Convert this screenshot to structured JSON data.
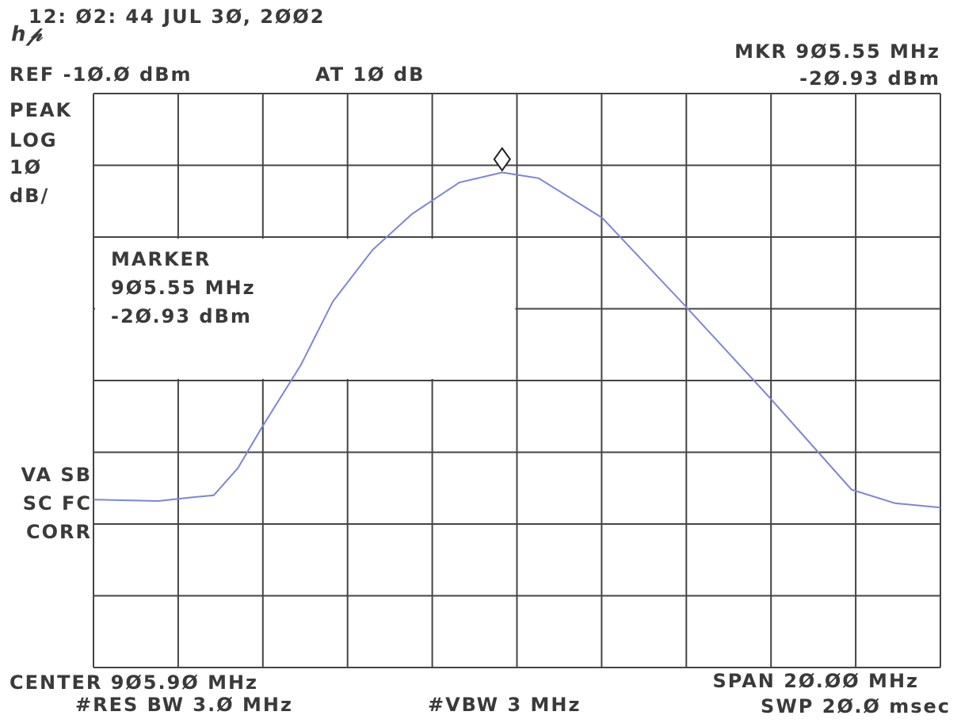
{
  "chart_data": {
    "type": "line",
    "header": {
      "timestamp": "12: Ø2: 44 JUL 3Ø, 2ØØ2",
      "ref": "REF -1Ø.Ø dBm",
      "atten": "AT 1Ø dB",
      "mkr_freq": "MKR 9Ø5.55 MHz",
      "mkr_level": "-2Ø.93 dBm"
    },
    "left_labels": [
      "PEAK",
      "LOG",
      "1Ø",
      "dB/"
    ],
    "status_labels": [
      "VA SB",
      "SC FC",
      "CORR"
    ],
    "marker_box": [
      "MARKER",
      "9Ø5.55 MHz",
      "-2Ø.93 dBm"
    ],
    "footer": {
      "center": "CENTER 9Ø5.9Ø MHz",
      "res_bw": "#RES BW 3.Ø MHz",
      "vbw": "#VBW 3 MHz",
      "span": "SPAN 2Ø.ØØ MHz",
      "sweep": "SWP 2Ø.Ø msec"
    },
    "xlim": [
      895.9,
      915.9
    ],
    "ylim": [
      -90,
      -10
    ],
    "grid": true,
    "marker": {
      "x": 905.55,
      "y": -20.93
    },
    "series": [
      {
        "color": "#7b86d8",
        "x": [
          895.9,
          897.43,
          898.2,
          898.74,
          899.31,
          899.87,
          900.8,
          901.55,
          902.49,
          903.42,
          904.54,
          905.55,
          906.41,
          907.91,
          909.78,
          911.84,
          913.8,
          914.83,
          915.9
        ],
        "values": [
          -66.6,
          -66.8,
          -66.3,
          -66.0,
          -62.2,
          -56.6,
          -47.8,
          -39.0,
          -31.8,
          -26.8,
          -22.4,
          -21.0,
          -21.8,
          -27.3,
          -39.0,
          -52.2,
          -65.2,
          -67.1,
          -67.7
        ]
      }
    ]
  }
}
